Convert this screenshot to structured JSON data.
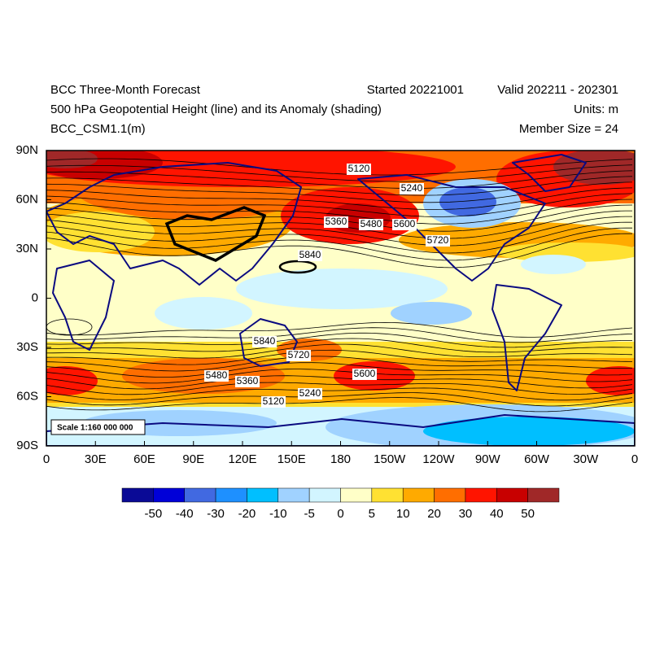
{
  "header": {
    "title": "BCC Three-Month Forecast",
    "started": "Started 20221001",
    "valid": "Valid 202211 - 202301",
    "subtitle": "500 hPa Geopotential Height (line) and its Anomaly (shading)",
    "units": "Units: m",
    "model": "BCC_CSM1.1(m)",
    "members": "Member Size = 24"
  },
  "map": {
    "x_labels": [
      "0",
      "30E",
      "60E",
      "90E",
      "120E",
      "150E",
      "180",
      "150W",
      "120W",
      "90W",
      "60W",
      "30W",
      "0"
    ],
    "y_labels": [
      "90N",
      "60N",
      "30N",
      "0",
      "30S",
      "60S",
      "90S"
    ],
    "contour_labels": [
      "5120",
      "5240",
      "5360",
      "5480",
      "5600",
      "5720",
      "5840",
      "5840",
      "5720",
      "5480",
      "5360",
      "5600",
      "5240",
      "5120"
    ],
    "scale": "Scale 1:160 000 000"
  },
  "colorbar": {
    "levels": [
      -50,
      -40,
      -30,
      -20,
      -10,
      -5,
      0,
      5,
      10,
      20,
      30,
      40,
      50
    ],
    "colors": [
      "#0a0a96",
      "#0000d8",
      "#4169e1",
      "#1e90ff",
      "#00bfff",
      "#a0d2ff",
      "#d2f5ff",
      "#ffffc8",
      "#ffe132",
      "#ffaa00",
      "#ff6e00",
      "#ff1400",
      "#c80000",
      "#a02828"
    ]
  }
}
